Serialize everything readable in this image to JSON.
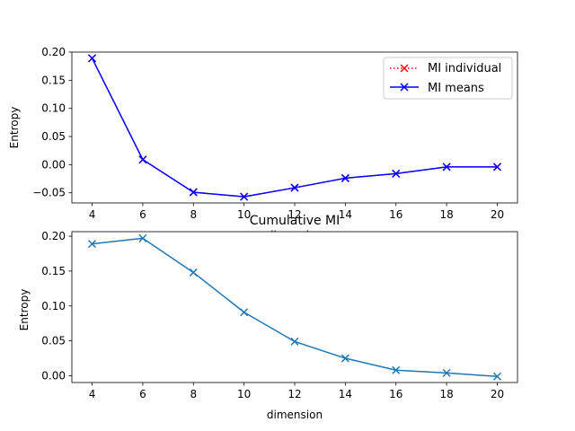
{
  "chart_data": [
    {
      "type": "line",
      "title": "",
      "xlabel": "dimension",
      "ylabel": "Entropy",
      "x": [
        4,
        6,
        8,
        10,
        12,
        14,
        16,
        18,
        20
      ],
      "xticks": [
        4,
        6,
        8,
        10,
        12,
        14,
        16,
        18,
        20
      ],
      "xlim": [
        3.2,
        20.8
      ],
      "yticks": [
        -0.05,
        0.0,
        0.05,
        0.1,
        0.15,
        0.2
      ],
      "ytick_labels": [
        "−0.05",
        "0.00",
        "0.05",
        "0.10",
        "0.15",
        "0.20"
      ],
      "ylim": [
        -0.068,
        0.2
      ],
      "legend": "top-right",
      "grid": false,
      "series": [
        {
          "name": "MI individual",
          "color": "#ff0000",
          "linestyle": "dotted",
          "marker": "x",
          "values": [
            0.189,
            0.009,
            -0.049,
            -0.057,
            -0.041,
            -0.024,
            -0.016,
            -0.004,
            -0.004
          ]
        },
        {
          "name": "MI means",
          "color": "#0000ff",
          "linestyle": "solid",
          "marker": "x",
          "values": [
            0.189,
            0.009,
            -0.049,
            -0.057,
            -0.041,
            -0.024,
            -0.016,
            -0.004,
            -0.004
          ]
        }
      ]
    },
    {
      "type": "line",
      "title": "Cumulative MI",
      "xlabel": "dimension",
      "ylabel": "Entropy",
      "x": [
        4,
        6,
        8,
        10,
        12,
        14,
        16,
        18,
        20
      ],
      "xticks": [
        4,
        6,
        8,
        10,
        12,
        14,
        16,
        18,
        20
      ],
      "xlim": [
        3.2,
        20.8
      ],
      "yticks": [
        0.0,
        0.05,
        0.1,
        0.15,
        0.2
      ],
      "ytick_labels": [
        "0.00",
        "0.05",
        "0.10",
        "0.15",
        "0.20"
      ],
      "ylim": [
        -0.0097,
        0.2065
      ],
      "grid": false,
      "series": [
        {
          "color": "#1f77b4",
          "linestyle": "solid",
          "marker": "x",
          "values": [
            0.189,
            0.197,
            0.148,
            0.091,
            0.049,
            0.025,
            0.008,
            0.004,
            -0.001
          ]
        }
      ]
    }
  ]
}
